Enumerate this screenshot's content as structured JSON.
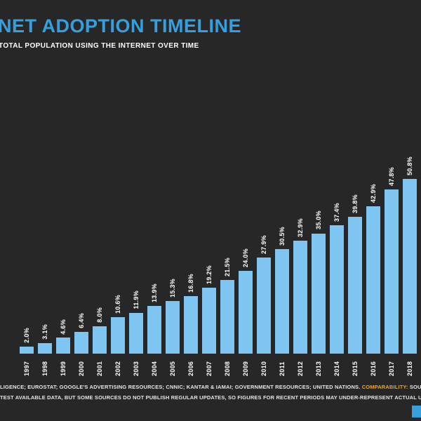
{
  "header": {
    "title": "NET ADOPTION TIMELINE",
    "subtitle": "TOTAL POPULATION USING THE INTERNET OVER TIME"
  },
  "chart_data": {
    "type": "bar",
    "title": "NET ADOPTION TIMELINE",
    "subtitle": "TOTAL POPULATION USING THE INTERNET OVER TIME",
    "categories": [
      "1997",
      "1998",
      "1999",
      "2000",
      "2001",
      "2002",
      "2003",
      "2004",
      "2005",
      "2006",
      "2007",
      "2008",
      "2009",
      "2010",
      "2011",
      "2012",
      "2013",
      "2014",
      "2015",
      "2016",
      "2017",
      "2018"
    ],
    "values": [
      2.0,
      3.1,
      4.6,
      6.4,
      8.0,
      10.6,
      11.9,
      13.9,
      15.3,
      16.8,
      19.2,
      21.5,
      24.0,
      27.9,
      30.5,
      32.9,
      35.0,
      37.4,
      39.8,
      42.9,
      47.8,
      50.8
    ],
    "value_labels": [
      "2.0%",
      "3.1%",
      "4.6%",
      "6.4%",
      "8.0%",
      "10.6%",
      "11.9%",
      "13.9%",
      "15.3%",
      "16.8%",
      "19.2%",
      "21.5%",
      "24.0%",
      "27.9%",
      "30.5%",
      "32.9%",
      "35.0%",
      "37.4%",
      "39.8%",
      "42.9%",
      "47.8%",
      "50.8%"
    ],
    "xlabel": "",
    "ylabel": "",
    "ylim": [
      0,
      55
    ],
    "grid": false,
    "legend": false,
    "bar_color": "#7fc5f2",
    "label_color": "#ffffff",
    "label_orientation": "vertical"
  },
  "footer": {
    "line1_pre": "LIGENCE; EUROSTAT; GOOGLE'S ADVERTISING RESOURCES; CNNIC; KANTAR & IAMAI; GOVERNMENT RESOURCES; UNITED NATIONS. ",
    "line1_highlight": "COMPARABILITY:",
    "line1_post": " SOURCE",
    "line2": "TEST AVAILABLE DATA, BUT SOME SOURCES DO NOT PUBLISH REGULAR UPDATES, SO FIGURES FOR RECENT PERIODS MAY UNDER-REPRESENT ACTUAL USE. SEE"
  },
  "colors": {
    "background": "#272727",
    "title_blue": "#35a0dd",
    "bar_blue": "#7fc5f2",
    "highlight_orange": "#f5a31c",
    "corner_accent": "#35a0dd"
  }
}
